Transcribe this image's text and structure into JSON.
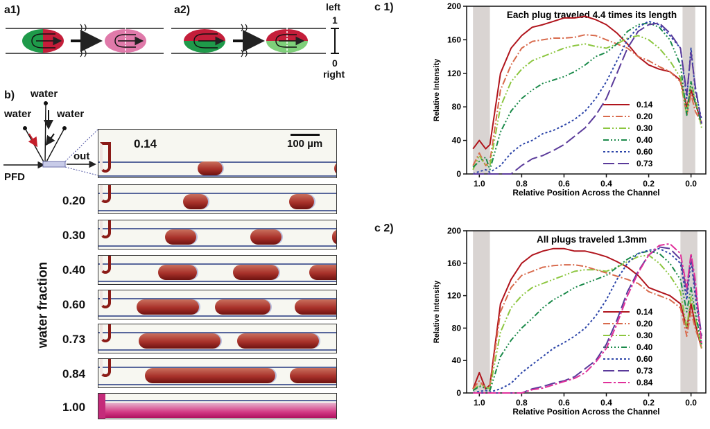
{
  "panel_labels": {
    "a1": "a1)",
    "a2": "a2)",
    "b": "b)",
    "c1": "c 1)",
    "c2": "c 2)"
  },
  "scale_bar": {
    "left_label": "left",
    "top_value": "1",
    "bottom_value": "0",
    "right_label": "right"
  },
  "inlet_diagram": {
    "water_top": "water",
    "water_left": "water",
    "water_right": "water",
    "pfd": "PFD",
    "out": "out"
  },
  "channel_images": {
    "scale_label": "100 µm",
    "axis_label": "water fraction",
    "fractions": [
      "0.14",
      "0.20",
      "0.30",
      "0.40",
      "0.60",
      "0.73",
      "0.84",
      "1.00"
    ]
  },
  "chart_data": [
    {
      "type": "line",
      "title": "Each plug traveled 4.4 times its length",
      "xlabel": "Relative Position Across the Channel",
      "ylabel": "Relative Intensity",
      "xlim": [
        1.06,
        -0.07
      ],
      "ylim": [
        0,
        200
      ],
      "xticks": [
        "1.0",
        "0.8",
        "0.6",
        "0.4",
        "0.2",
        "0.0"
      ],
      "yticks": [
        "0",
        "40",
        "80",
        "120",
        "160",
        "200"
      ],
      "shaded_bands": [
        [
          1.03,
          0.95
        ],
        [
          0.04,
          -0.02
        ]
      ],
      "x": [
        1.03,
        1.0,
        0.97,
        0.95,
        0.9,
        0.85,
        0.8,
        0.75,
        0.7,
        0.65,
        0.6,
        0.55,
        0.5,
        0.45,
        0.4,
        0.35,
        0.3,
        0.25,
        0.2,
        0.15,
        0.1,
        0.05,
        0.02,
        0.0,
        -0.02,
        -0.05
      ],
      "series": [
        {
          "name": "0.14",
          "color": "#b0141c",
          "dash": "",
          "values": [
            30,
            40,
            30,
            35,
            120,
            150,
            165,
            175,
            178,
            182,
            186,
            186,
            188,
            184,
            178,
            168,
            155,
            140,
            130,
            125,
            122,
            112,
            80,
            100,
            85,
            60
          ]
        },
        {
          "name": "0.20",
          "color": "#d86a4c",
          "dash": "10 3 2 3",
          "values": [
            10,
            25,
            10,
            15,
            100,
            130,
            150,
            158,
            160,
            162,
            162,
            163,
            166,
            165,
            160,
            155,
            150,
            140,
            135,
            128,
            122,
            110,
            70,
            95,
            75,
            60
          ]
        },
        {
          "name": "0.30",
          "color": "#8cc63f",
          "dash": "10 3 2 3 2 3",
          "values": [
            5,
            22,
            10,
            10,
            80,
            110,
            125,
            135,
            140,
            145,
            150,
            153,
            155,
            152,
            150,
            155,
            162,
            165,
            160,
            150,
            135,
            115,
            70,
            110,
            90,
            55
          ]
        },
        {
          "name": "0.40",
          "color": "#1a8a4a",
          "dash": "8 3 2 3 2 3 2 3",
          "values": [
            8,
            15,
            20,
            5,
            50,
            75,
            90,
            100,
            108,
            112,
            116,
            122,
            130,
            140,
            145,
            155,
            170,
            178,
            180,
            175,
            160,
            130,
            70,
            110,
            85,
            60
          ]
        },
        {
          "name": "0.60",
          "color": "#2b44a8",
          "dash": "3 3",
          "values": [
            0,
            3,
            5,
            2,
            10,
            25,
            35,
            40,
            48,
            52,
            58,
            65,
            75,
            90,
            110,
            135,
            160,
            175,
            182,
            178,
            165,
            150,
            90,
            150,
            100,
            65
          ]
        },
        {
          "name": "0.73",
          "color": "#5a3a9a",
          "dash": "16 5",
          "values": [
            0,
            0,
            0,
            0,
            0,
            0,
            10,
            18,
            22,
            28,
            35,
            45,
            55,
            70,
            90,
            120,
            150,
            170,
            178,
            180,
            168,
            150,
            95,
            145,
            105,
            60
          ]
        }
      ]
    },
    {
      "type": "line",
      "title": "All plugs traveled 1.3mm",
      "xlabel": "Relative Position Across the Channel",
      "ylabel": "Relative Intensity",
      "xlim": [
        1.06,
        -0.07
      ],
      "ylim": [
        0,
        200
      ],
      "xticks": [
        "1.0",
        "0.8",
        "0.6",
        "0.4",
        "0.2",
        "0.0"
      ],
      "yticks": [
        "0",
        "40",
        "80",
        "120",
        "160",
        "200"
      ],
      "shaded_bands": [
        [
          1.03,
          0.95
        ],
        [
          0.05,
          -0.03
        ]
      ],
      "x": [
        1.03,
        1.0,
        0.97,
        0.95,
        0.9,
        0.85,
        0.8,
        0.75,
        0.7,
        0.65,
        0.6,
        0.55,
        0.5,
        0.45,
        0.4,
        0.35,
        0.3,
        0.25,
        0.2,
        0.15,
        0.1,
        0.05,
        0.02,
        0.0,
        -0.02,
        -0.05
      ],
      "series": [
        {
          "name": "0.14",
          "color": "#b0141c",
          "dash": "",
          "values": [
            5,
            25,
            5,
            10,
            110,
            140,
            160,
            170,
            175,
            178,
            178,
            175,
            175,
            172,
            168,
            162,
            155,
            145,
            130,
            125,
            120,
            110,
            80,
            110,
            85,
            55
          ]
        },
        {
          "name": "0.20",
          "color": "#d86a4c",
          "dash": "10 3 2 3",
          "values": [
            5,
            15,
            5,
            8,
            100,
            130,
            145,
            150,
            155,
            157,
            158,
            158,
            156,
            152,
            148,
            144,
            140,
            135,
            125,
            120,
            115,
            105,
            70,
            100,
            80,
            55
          ]
        },
        {
          "name": "0.30",
          "color": "#8cc63f",
          "dash": "10 3 2 3 2 3",
          "values": [
            3,
            10,
            8,
            5,
            75,
            105,
            120,
            130,
            135,
            140,
            145,
            150,
            152,
            152,
            150,
            155,
            162,
            168,
            170,
            160,
            145,
            125,
            80,
            120,
            95,
            55
          ]
        },
        {
          "name": "0.40",
          "color": "#1a8a4a",
          "dash": "8 3 2 3 2 3 2 3",
          "values": [
            3,
            8,
            6,
            3,
            45,
            65,
            80,
            92,
            105,
            115,
            122,
            130,
            135,
            140,
            145,
            155,
            165,
            172,
            175,
            172,
            160,
            140,
            100,
            130,
            100,
            60
          ]
        },
        {
          "name": "0.60",
          "color": "#2b44a8",
          "dash": "3 3",
          "values": [
            0,
            2,
            3,
            1,
            5,
            12,
            25,
            35,
            45,
            55,
            62,
            70,
            80,
            95,
            115,
            140,
            160,
            172,
            176,
            178,
            172,
            160,
            115,
            165,
            120,
            65
          ]
        },
        {
          "name": "0.73",
          "color": "#5a3a9a",
          "dash": "16 5",
          "values": [
            0,
            0,
            0,
            0,
            0,
            0,
            0,
            5,
            8,
            12,
            15,
            20,
            30,
            40,
            60,
            90,
            125,
            150,
            170,
            180,
            178,
            165,
            125,
            170,
            130,
            70
          ]
        },
        {
          "name": "0.84",
          "color": "#e0309a",
          "dash": "12 3 3 3",
          "values": [
            0,
            0,
            0,
            0,
            0,
            0,
            0,
            4,
            6,
            10,
            14,
            18,
            25,
            38,
            55,
            85,
            120,
            148,
            170,
            182,
            184,
            172,
            130,
            172,
            140,
            60
          ]
        }
      ]
    }
  ]
}
